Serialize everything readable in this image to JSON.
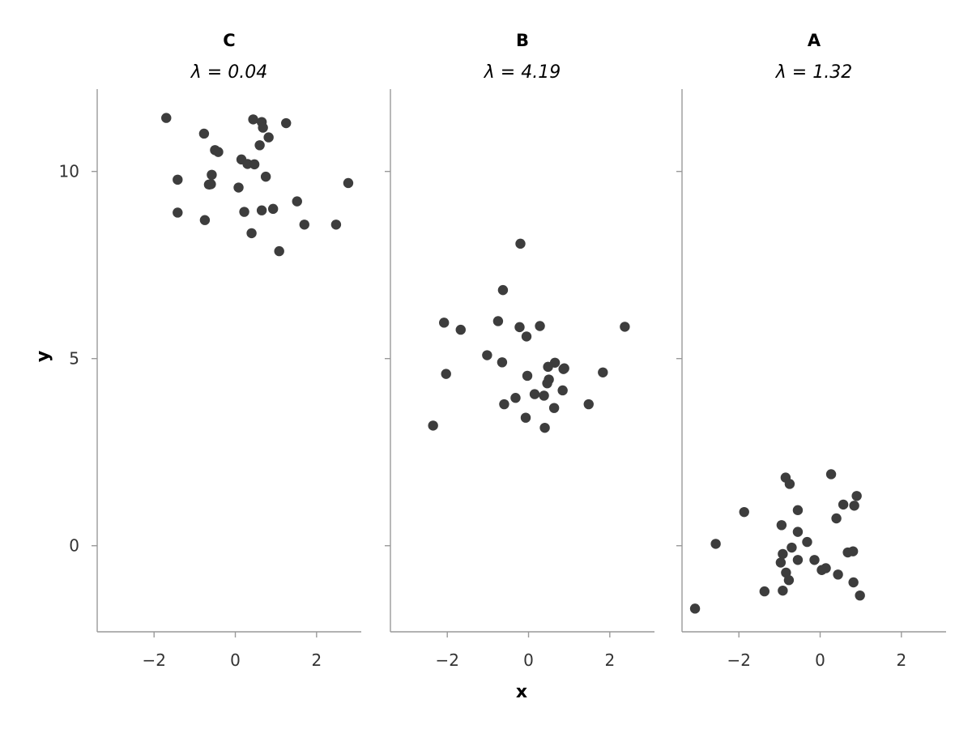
{
  "chart_data": {
    "type": "scatter",
    "layout": "facets-in-a-row",
    "shared_y_axis": true,
    "xlabel": "x",
    "ylabel": "y",
    "xlim": [
      -3.4,
      3.1
    ],
    "ylim": [
      -2.3,
      12.2
    ],
    "x_ticks": [
      -2,
      0,
      2
    ],
    "y_ticks": [
      0,
      5,
      10
    ],
    "grid": false,
    "marker_color": "#3d3d3d",
    "facets": [
      {
        "title": "C",
        "subtitle": "λ = 0.04",
        "points": [
          [
            -1.7,
            11.43
          ],
          [
            -0.77,
            11.01
          ],
          [
            0.44,
            11.39
          ],
          [
            0.65,
            11.32
          ],
          [
            1.25,
            11.29
          ],
          [
            0.68,
            11.17
          ],
          [
            0.82,
            10.91
          ],
          [
            0.6,
            10.7
          ],
          [
            -0.5,
            10.57
          ],
          [
            -0.42,
            10.52
          ],
          [
            0.15,
            10.32
          ],
          [
            0.3,
            10.2
          ],
          [
            0.47,
            10.19
          ],
          [
            -0.58,
            9.91
          ],
          [
            0.75,
            9.86
          ],
          [
            -1.42,
            9.78
          ],
          [
            -0.6,
            9.66
          ],
          [
            -0.65,
            9.65
          ],
          [
            0.08,
            9.57
          ],
          [
            2.78,
            9.69
          ],
          [
            1.52,
            9.2
          ],
          [
            0.93,
            9.0
          ],
          [
            0.65,
            8.96
          ],
          [
            0.22,
            8.92
          ],
          [
            -1.42,
            8.9
          ],
          [
            -0.75,
            8.7
          ],
          [
            1.7,
            8.58
          ],
          [
            2.48,
            8.58
          ],
          [
            0.4,
            8.35
          ],
          [
            1.08,
            7.87
          ]
        ]
      },
      {
        "title": "B",
        "subtitle": "λ = 4.19",
        "points": [
          [
            -0.2,
            8.07
          ],
          [
            -0.63,
            6.83
          ],
          [
            -0.75,
            6.0
          ],
          [
            -2.08,
            5.96
          ],
          [
            -1.67,
            5.77
          ],
          [
            -0.22,
            5.84
          ],
          [
            0.28,
            5.87
          ],
          [
            -0.05,
            5.59
          ],
          [
            2.37,
            5.85
          ],
          [
            -1.02,
            5.09
          ],
          [
            -0.65,
            4.9
          ],
          [
            0.65,
            4.89
          ],
          [
            0.48,
            4.78
          ],
          [
            0.88,
            4.74
          ],
          [
            0.86,
            4.72
          ],
          [
            -2.03,
            4.59
          ],
          [
            1.83,
            4.63
          ],
          [
            -0.03,
            4.54
          ],
          [
            0.5,
            4.44
          ],
          [
            0.46,
            4.34
          ],
          [
            0.84,
            4.15
          ],
          [
            0.15,
            4.05
          ],
          [
            0.38,
            4.01
          ],
          [
            -0.32,
            3.95
          ],
          [
            -0.6,
            3.78
          ],
          [
            1.48,
            3.78
          ],
          [
            0.63,
            3.68
          ],
          [
            -0.07,
            3.42
          ],
          [
            -2.35,
            3.21
          ],
          [
            0.4,
            3.15
          ]
        ]
      },
      {
        "title": "A",
        "subtitle": "λ = 1.32",
        "points": [
          [
            -0.85,
            1.82
          ],
          [
            0.27,
            1.91
          ],
          [
            -0.75,
            1.65
          ],
          [
            0.9,
            1.33
          ],
          [
            0.57,
            1.1
          ],
          [
            0.84,
            1.07
          ],
          [
            -1.87,
            0.9
          ],
          [
            -0.55,
            0.95
          ],
          [
            0.4,
            0.73
          ],
          [
            -0.95,
            0.55
          ],
          [
            -0.55,
            0.37
          ],
          [
            -0.32,
            0.1
          ],
          [
            -2.57,
            0.05
          ],
          [
            -0.7,
            -0.05
          ],
          [
            0.68,
            -0.18
          ],
          [
            0.81,
            -0.15
          ],
          [
            -0.92,
            -0.22
          ],
          [
            -0.55,
            -0.38
          ],
          [
            -0.14,
            -0.38
          ],
          [
            -0.97,
            -0.45
          ],
          [
            0.14,
            -0.6
          ],
          [
            0.04,
            -0.65
          ],
          [
            -0.84,
            -0.72
          ],
          [
            0.44,
            -0.77
          ],
          [
            -0.77,
            -0.92
          ],
          [
            0.82,
            -0.98
          ],
          [
            -1.37,
            -1.22
          ],
          [
            -0.92,
            -1.2
          ],
          [
            0.98,
            -1.33
          ],
          [
            -3.08,
            -1.68
          ]
        ]
      }
    ]
  }
}
